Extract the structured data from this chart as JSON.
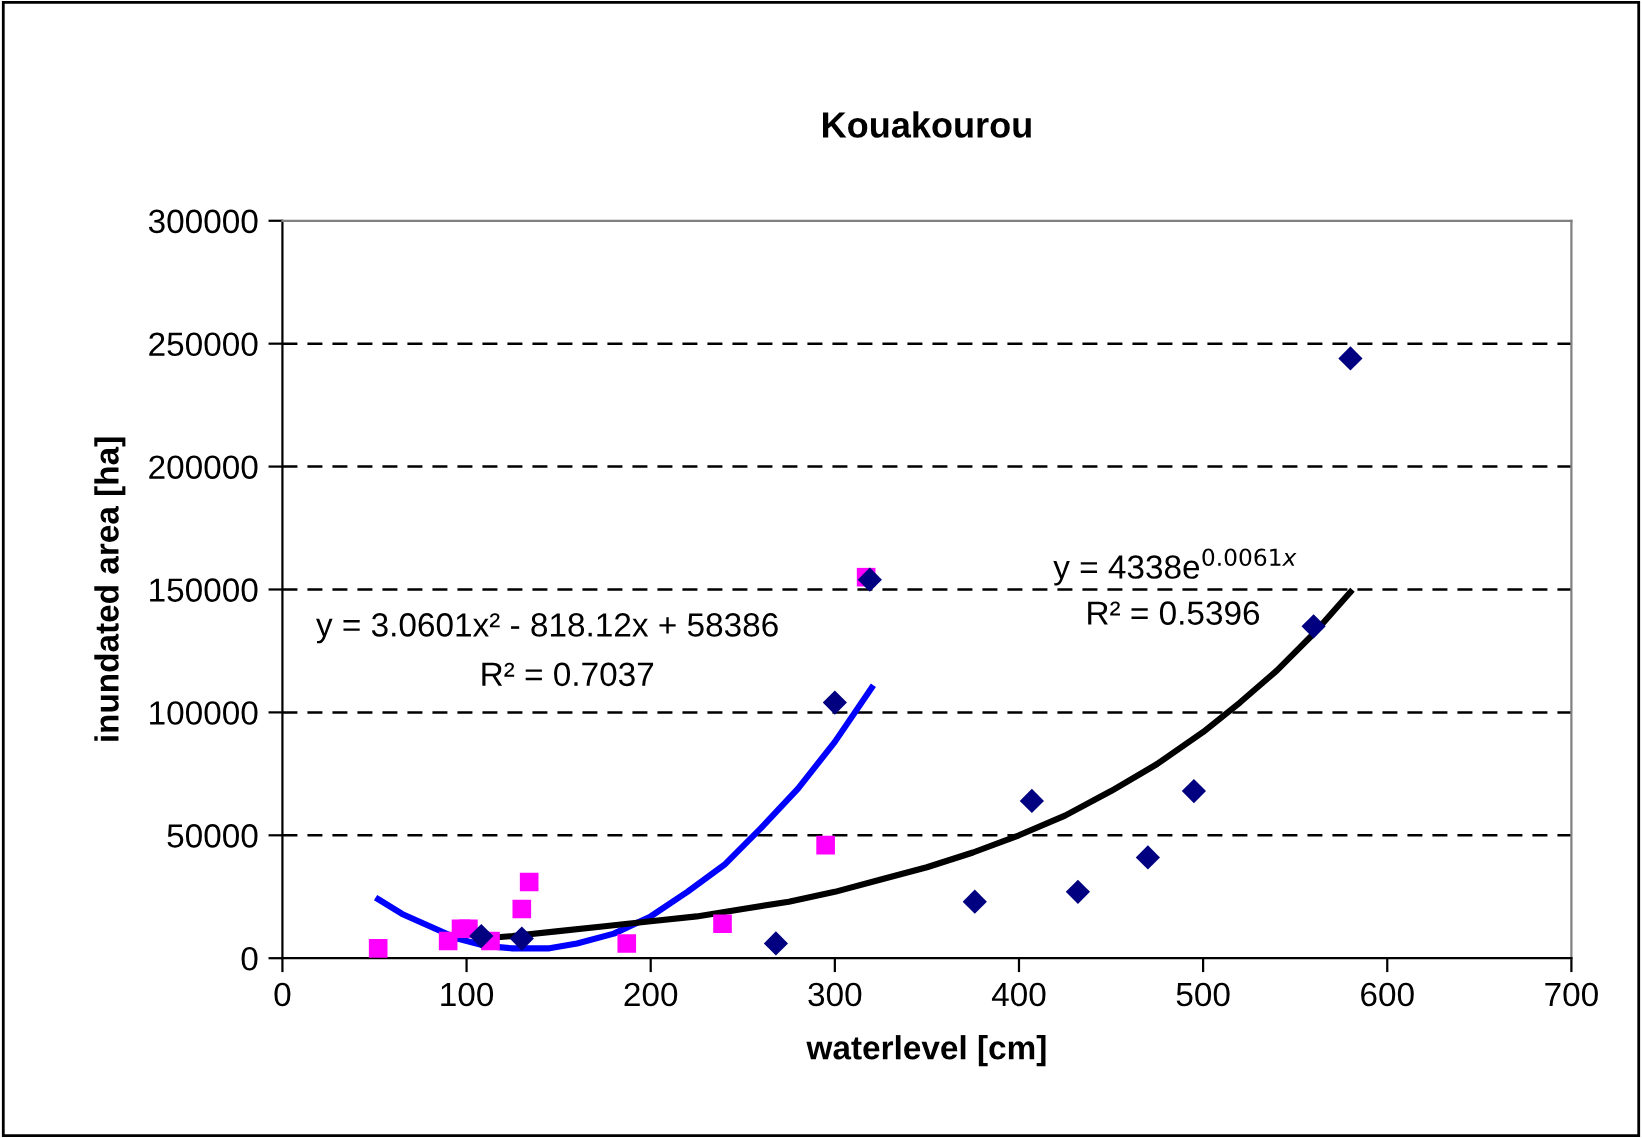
{
  "chart_data": {
    "type": "scatter",
    "title": "Kouakourou",
    "xlabel": "waterlevel [cm]",
    "ylabel": "inundated area [ha]",
    "xlim": [
      0,
      700
    ],
    "xticks": [
      0,
      100,
      200,
      300,
      400,
      500,
      600,
      700
    ],
    "ylim": [
      0,
      300000
    ],
    "yticks": [
      0,
      50000,
      100000,
      150000,
      200000,
      250000,
      300000
    ],
    "grid": "y",
    "legend": false,
    "series": [
      {
        "type": "line",
        "color": "#0000ff",
        "marker": "none",
        "line_style": "solid",
        "x": [
          52,
          65,
          80,
          95,
          110,
          125,
          134,
          145,
          160,
          180,
          200,
          220,
          240,
          260,
          280,
          300,
          320
        ],
        "values": [
          24000,
          18000,
          13000,
          8000,
          5000,
          4000,
          4000,
          4000,
          6000,
          10000,
          17000,
          27000,
          38000,
          53000,
          69000,
          88000,
          110000
        ]
      },
      {
        "type": "line",
        "color": "#000000",
        "marker": "none",
        "line_style": "solid",
        "x": [
          108,
          125,
          150,
          175,
          200,
          225,
          250,
          275,
          300,
          325,
          350,
          375,
          400,
          425,
          450,
          475,
          500,
          520,
          540,
          560,
          580
        ],
        "values": [
          8000,
          9000,
          11000,
          13000,
          15000,
          17000,
          20000,
          23000,
          27000,
          32000,
          37000,
          43000,
          50000,
          58000,
          68000,
          79000,
          92000,
          104000,
          117000,
          132000,
          149000
        ]
      },
      {
        "color": "#ff00ff",
        "marker": "square",
        "x": [
          52,
          90,
          97,
          101,
          113,
          130,
          134,
          187,
          239,
          295,
          317
        ],
        "values": [
          4000,
          7000,
          12000,
          12000,
          7000,
          20000,
          31000,
          6000,
          14000,
          46000,
          155000
        ]
      },
      {
        "color": "#000080",
        "marker": "diamond",
        "x": [
          108,
          130,
          268,
          300,
          319,
          376,
          407,
          432,
          470,
          495,
          560,
          580
        ],
        "values": [
          9000,
          8000,
          6000,
          104000,
          154000,
          23000,
          64000,
          27000,
          41000,
          68000,
          135000,
          244000
        ]
      }
    ],
    "annotations": [
      "y = 3.0601x² - 818.12x + 58386",
      "R² = 0.7037",
      "y = 4338e$^{0.0061x}$",
      "R² = 0.5396"
    ]
  }
}
